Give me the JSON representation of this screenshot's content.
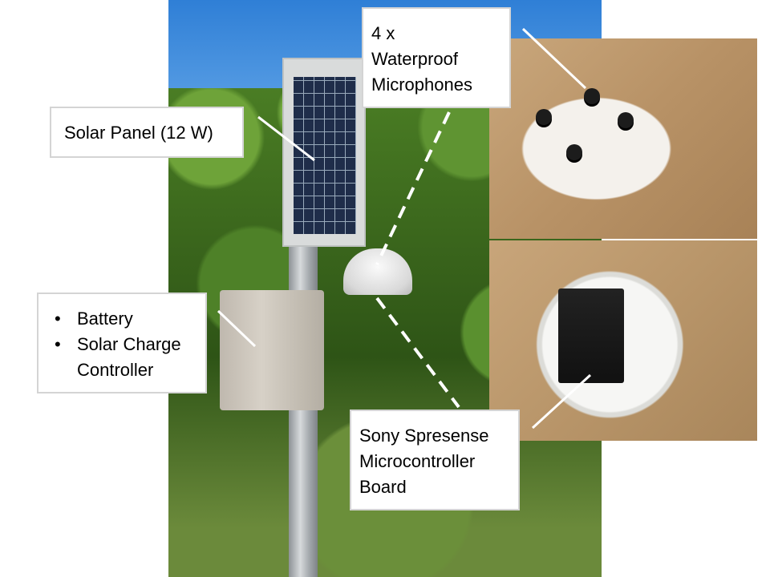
{
  "labels": {
    "microphones": {
      "lines": [
        "4 x",
        "Waterproof",
        "Microphones"
      ]
    },
    "solar_panel": {
      "text": "Solar Panel (12 W)"
    },
    "enclosure": {
      "items": [
        "Battery",
        "Solar Charge",
        "Controller"
      ]
    },
    "board": {
      "lines": [
        "Sony Spresense",
        "Microcontroller",
        "Board"
      ]
    }
  }
}
